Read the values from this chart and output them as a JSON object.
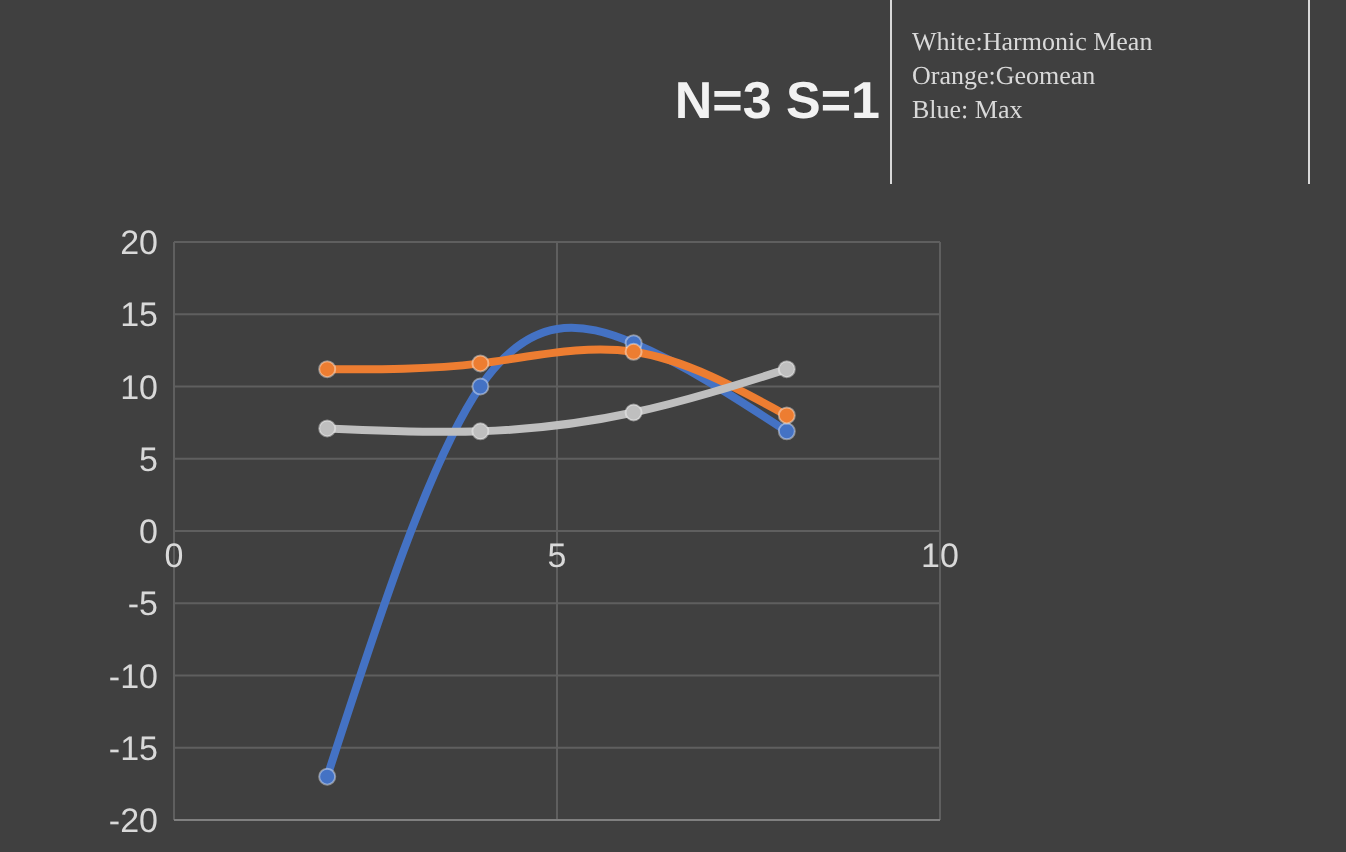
{
  "chart_data": {
    "type": "line",
    "title": "N=3 S=1",
    "annotations": [
      "White:Harmonic Mean",
      "Orange:Geomean",
      "Blue: Max"
    ],
    "x": [
      2,
      4,
      6,
      8
    ],
    "series": [
      {
        "color": "#4472c4",
        "values": [
          -17,
          10,
          13,
          6.9
        ]
      },
      {
        "color": "#ed7d31",
        "values": [
          11.2,
          11.6,
          12.4,
          8
        ]
      },
      {
        "color": "#bfbfbf",
        "values": [
          7.1,
          6.9,
          8.2,
          11.2
        ]
      }
    ],
    "xlim": [
      0,
      10
    ],
    "xticks": [
      0,
      5,
      10
    ],
    "ylim": [
      -20,
      20
    ],
    "yticks": [
      -20,
      -15,
      -10,
      -5,
      0,
      5,
      10,
      15,
      20
    ],
    "grid": true,
    "marker": "circle",
    "line_style": "solid"
  }
}
